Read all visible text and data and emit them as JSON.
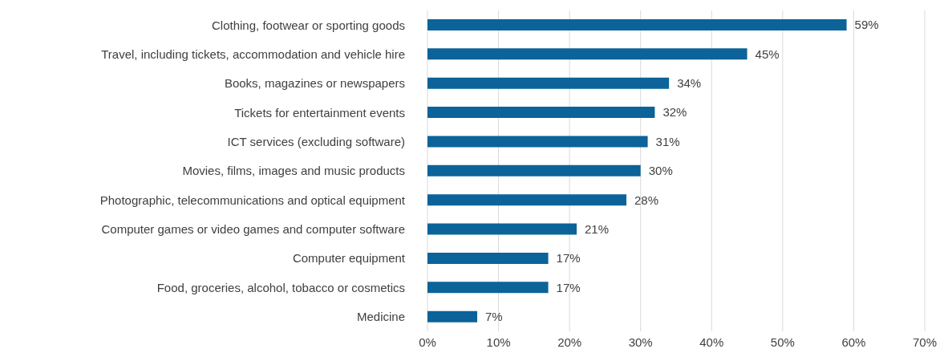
{
  "chart_data": {
    "type": "bar",
    "orientation": "horizontal",
    "categories": [
      "Clothing, footwear or sporting goods",
      "Travel, including tickets, accommodation and vehicle hire",
      "Books, magazines or newspapers",
      "Tickets for entertainment events",
      "ICT services (excluding software)",
      "Movies, films, images and music products",
      "Photographic, telecommunications and optical equipment",
      "Computer games or video games and computer software",
      "Computer equipment",
      "Food, groceries, alcohol, tobacco or cosmetics",
      "Medicine"
    ],
    "values": [
      59,
      45,
      34,
      32,
      31,
      30,
      28,
      21,
      17,
      17,
      7
    ],
    "value_labels": [
      "59%",
      "45%",
      "34%",
      "32%",
      "31%",
      "30%",
      "28%",
      "21%",
      "17%",
      "17%",
      "7%"
    ],
    "color": "#0b6399",
    "xlim": [
      0,
      70
    ],
    "xticks": [
      {
        "value": 0,
        "label": "0%"
      },
      {
        "value": 10,
        "label": "10%"
      },
      {
        "value": 20,
        "label": "20%"
      },
      {
        "value": 30,
        "label": "30%"
      },
      {
        "value": 40,
        "label": "40%"
      },
      {
        "value": 50,
        "label": "50%"
      },
      {
        "value": 60,
        "label": "60%"
      },
      {
        "value": 70,
        "label": "70%"
      }
    ],
    "grid": "x"
  }
}
